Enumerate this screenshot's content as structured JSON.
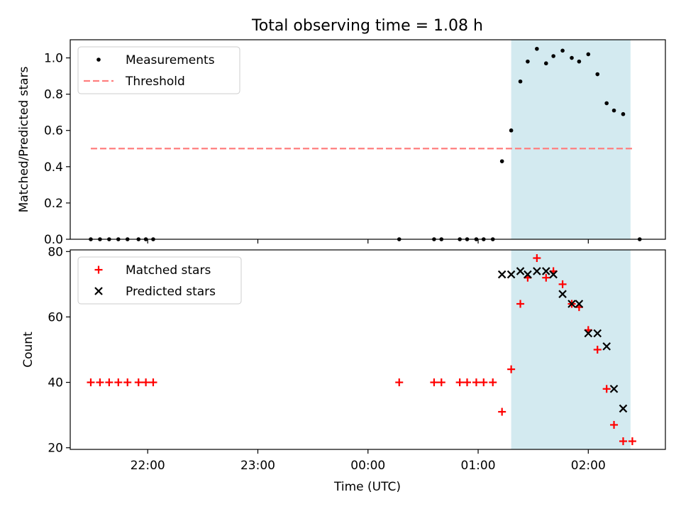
{
  "figure": {
    "title": "Total observing time = 1.08 h",
    "xlabel": "Time (UTC)",
    "x_ticks": [
      "22:00",
      "23:00",
      "00:00",
      "01:00",
      "02:00"
    ],
    "observing_window": {
      "start": "01:18",
      "end": "02:23",
      "color": "#d3eaf0"
    }
  },
  "chart_data": [
    {
      "type": "scatter",
      "ylabel": "Matched/Predicted stars",
      "ylim": [
        0,
        1.1
      ],
      "y_ticks": [
        "0.0",
        "0.2",
        "0.4",
        "0.6",
        "0.8",
        "1.0"
      ],
      "legend_position": "top-left",
      "series": [
        {
          "name": "Measurements",
          "color": "#000000",
          "marker": "dot",
          "points": [
            [
              "21:29",
              0
            ],
            [
              "21:34",
              0
            ],
            [
              "21:39",
              0
            ],
            [
              "21:44",
              0
            ],
            [
              "21:49",
              0
            ],
            [
              "21:55",
              0
            ],
            [
              "21:59",
              0
            ],
            [
              "22:03",
              0
            ],
            [
              "00:17",
              0
            ],
            [
              "00:36",
              0
            ],
            [
              "00:40",
              0
            ],
            [
              "00:50",
              0
            ],
            [
              "00:54",
              0
            ],
            [
              "00:59",
              0
            ],
            [
              "01:03",
              0
            ],
            [
              "01:08",
              0
            ],
            [
              "01:13",
              0.43
            ],
            [
              "01:18",
              0.6
            ],
            [
              "01:23",
              0.87
            ],
            [
              "01:27",
              0.98
            ],
            [
              "01:32",
              1.05
            ],
            [
              "01:37",
              0.97
            ],
            [
              "01:41",
              1.01
            ],
            [
              "01:46",
              1.04
            ],
            [
              "01:51",
              1.0
            ],
            [
              "01:55",
              0.98
            ],
            [
              "02:00",
              1.02
            ],
            [
              "02:05",
              0.91
            ],
            [
              "02:10",
              0.75
            ],
            [
              "02:14",
              0.71
            ],
            [
              "02:19",
              0.69
            ],
            [
              "02:28",
              0
            ]
          ]
        },
        {
          "name": "Threshold",
          "color": "#ff7f7f",
          "style": "dashed",
          "points": [
            [
              "21:29",
              0.5
            ],
            [
              "02:25",
              0.5
            ]
          ]
        }
      ]
    },
    {
      "type": "scatter",
      "ylabel": "Count",
      "ylim": [
        19.5,
        80.5
      ],
      "y_ticks": [
        "20",
        "40",
        "60",
        "80"
      ],
      "legend_position": "top-left",
      "series": [
        {
          "name": "Matched stars",
          "color": "#ff0000",
          "marker": "plus",
          "points": [
            [
              "21:29",
              40
            ],
            [
              "21:34",
              40
            ],
            [
              "21:39",
              40
            ],
            [
              "21:44",
              40
            ],
            [
              "21:49",
              40
            ],
            [
              "21:55",
              40
            ],
            [
              "21:59",
              40
            ],
            [
              "22:03",
              40
            ],
            [
              "00:17",
              40
            ],
            [
              "00:36",
              40
            ],
            [
              "00:40",
              40
            ],
            [
              "00:50",
              40
            ],
            [
              "00:54",
              40
            ],
            [
              "00:59",
              40
            ],
            [
              "01:03",
              40
            ],
            [
              "01:08",
              40
            ],
            [
              "01:13",
              31
            ],
            [
              "01:18",
              44
            ],
            [
              "01:23",
              64
            ],
            [
              "01:27",
              72
            ],
            [
              "01:32",
              78
            ],
            [
              "01:37",
              72
            ],
            [
              "01:41",
              74
            ],
            [
              "01:46",
              70
            ],
            [
              "01:51",
              64
            ],
            [
              "01:55",
              63
            ],
            [
              "02:00",
              56
            ],
            [
              "02:05",
              50
            ],
            [
              "02:10",
              38
            ],
            [
              "02:14",
              27
            ],
            [
              "02:19",
              22
            ],
            [
              "02:24",
              22
            ]
          ]
        },
        {
          "name": "Predicted stars",
          "color": "#000000",
          "marker": "x",
          "points": [
            [
              "01:13",
              73
            ],
            [
              "01:18",
              73
            ],
            [
              "01:23",
              74
            ],
            [
              "01:27",
              73
            ],
            [
              "01:32",
              74
            ],
            [
              "01:37",
              74
            ],
            [
              "01:41",
              73
            ],
            [
              "01:46",
              67
            ],
            [
              "01:51",
              64
            ],
            [
              "01:55",
              64
            ],
            [
              "02:00",
              55
            ],
            [
              "02:05",
              55
            ],
            [
              "02:10",
              51
            ],
            [
              "02:14",
              38
            ],
            [
              "02:19",
              32
            ]
          ]
        }
      ]
    }
  ]
}
